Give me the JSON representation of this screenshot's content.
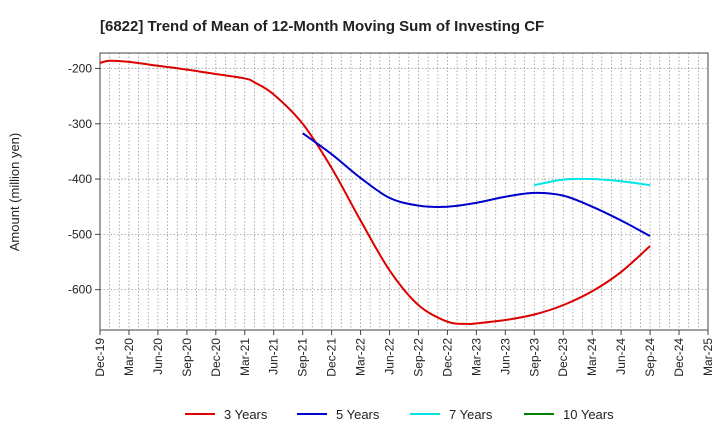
{
  "chart_data": {
    "type": "line",
    "title": "[6822]  Trend of Mean of 12-Month Moving Sum of Investing CF",
    "ylabel": "Amount (million yen)",
    "xlabel": "",
    "x_ticks": [
      "Dec-19",
      "Mar-20",
      "Jun-20",
      "Sep-20",
      "Dec-20",
      "Mar-21",
      "Jun-21",
      "Sep-21",
      "Dec-21",
      "Mar-22",
      "Jun-22",
      "Sep-22",
      "Dec-22",
      "Mar-23",
      "Jun-23",
      "Sep-23",
      "Dec-23",
      "Mar-24",
      "Jun-24",
      "Sep-24",
      "Dec-24",
      "Mar-25"
    ],
    "y_ticks": [
      -200,
      -300,
      -400,
      -500,
      -600
    ],
    "ylim": [
      -673,
      -172
    ],
    "grid": true,
    "legend_position": "bottom",
    "series": [
      {
        "name": "3 Years",
        "color": "#dd0000",
        "x": [
          "2019-12",
          "2020-01",
          "2020-03",
          "2020-06",
          "2020-09",
          "2020-12",
          "2021-03",
          "2021-04",
          "2021-06",
          "2021-09",
          "2021-12",
          "2022-03",
          "2022-06",
          "2022-09",
          "2022-12",
          "2023-02",
          "2023-03",
          "2023-06",
          "2023-09",
          "2023-12",
          "2024-03",
          "2024-06",
          "2024-09"
        ],
        "values": [
          -190,
          -186,
          -188,
          -195,
          -202,
          -210,
          -218,
          -225,
          -247,
          -300,
          -380,
          -475,
          -565,
          -628,
          -658,
          -662,
          -661,
          -655,
          -645,
          -628,
          -603,
          -568,
          -521
        ]
      },
      {
        "name": "5 Years",
        "color": "#0000cc",
        "x": [
          "2021-09",
          "2021-12",
          "2022-03",
          "2022-06",
          "2022-09",
          "2022-12",
          "2023-03",
          "2023-06",
          "2023-09",
          "2023-12",
          "2024-03",
          "2024-06",
          "2024-09"
        ],
        "values": [
          -317,
          -355,
          -398,
          -434,
          -448,
          -450,
          -443,
          -432,
          -425,
          -430,
          -450,
          -475,
          -503
        ]
      },
      {
        "name": "7 Years",
        "color": "#00e5e5",
        "x": [
          "2023-09",
          "2023-12",
          "2024-03",
          "2024-06",
          "2024-09"
        ],
        "values": [
          -411,
          -401,
          -400,
          -404,
          -411
        ]
      },
      {
        "name": "10 Years",
        "color": "#008000",
        "x": [],
        "values": []
      }
    ]
  }
}
